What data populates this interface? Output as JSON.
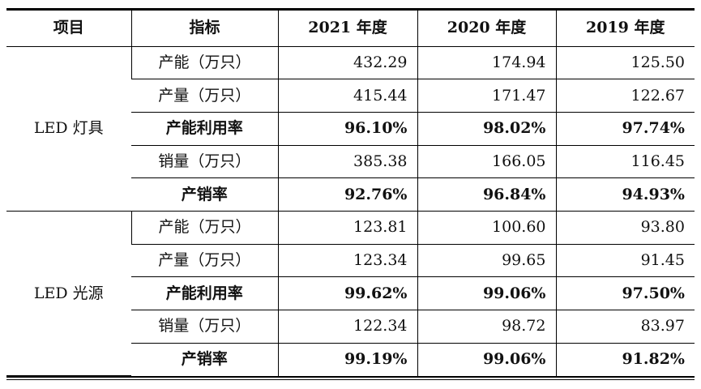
{
  "headers": [
    "项目",
    "指标",
    "2021 年度",
    "2020 年度",
    "2019 年度"
  ],
  "groups": [
    {
      "name": "LED 灯具",
      "rows": [
        {
          "metric": "产能（万只）",
          "values": [
            "432.29",
            "174.94",
            "125.50"
          ],
          "bold": false
        },
        {
          "metric": "产量（万只）",
          "values": [
            "415.44",
            "171.47",
            "122.67"
          ],
          "bold": false
        },
        {
          "metric": "产能利用率",
          "values": [
            "96.10%",
            "98.02%",
            "97.74%"
          ],
          "bold": true
        },
        {
          "metric": "销量（万只）",
          "values": [
            "385.38",
            "166.05",
            "116.45"
          ],
          "bold": false
        },
        {
          "metric": "产销率",
          "values": [
            "92.76%",
            "96.84%",
            "94.93%"
          ],
          "bold": true
        }
      ]
    },
    {
      "name": "LED 光源",
      "rows": [
        {
          "metric": "产能（万只）",
          "values": [
            "123.81",
            "100.60",
            "93.80"
          ],
          "bold": false
        },
        {
          "metric": "产量（万只）",
          "values": [
            "123.34",
            "99.65",
            "91.45"
          ],
          "bold": false
        },
        {
          "metric": "产能利用率",
          "values": [
            "99.62%",
            "99.06%",
            "97.50%"
          ],
          "bold": true
        },
        {
          "metric": "销量（万只）",
          "values": [
            "122.34",
            "98.72",
            "83.97"
          ],
          "bold": false
        },
        {
          "metric": "产销率",
          "values": [
            "99.19%",
            "99.06%",
            "91.82%"
          ],
          "bold": true
        }
      ]
    }
  ]
}
